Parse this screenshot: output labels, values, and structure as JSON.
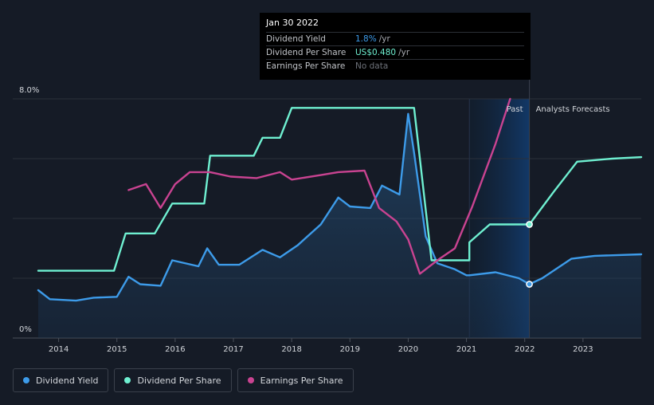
{
  "tooltip": {
    "date": "Jan 30 2022",
    "rows": [
      {
        "label": "Dividend Yield",
        "value": "1.8%",
        "unit": "/yr",
        "color": "#3d9be9"
      },
      {
        "label": "Dividend Per Share",
        "value": "US$0.480",
        "unit": "/yr",
        "color": "#6ff0d1"
      },
      {
        "label": "Earnings Per Share",
        "value": "No data",
        "unit": "",
        "color": "#6e727a"
      }
    ]
  },
  "period_labels": {
    "past": "Past",
    "forecast": "Analysts Forecasts"
  },
  "legend": [
    {
      "label": "Dividend Yield",
      "color": "#3d9be9"
    },
    {
      "label": "Dividend Per Share",
      "color": "#6ff0d1"
    },
    {
      "label": "Earnings Per Share",
      "color": "#c94391"
    }
  ],
  "chart_data": {
    "type": "line",
    "y_tick_labels": [
      "8.0%",
      "0%"
    ],
    "ylim": [
      0,
      8.0
    ],
    "xlim": [
      2013.65,
      2024.0
    ],
    "x_ticks": [
      2014,
      2015,
      2016,
      2017,
      2018,
      2019,
      2020,
      2021,
      2022,
      2023
    ],
    "x_tick_labels": [
      "2014",
      "2015",
      "2016",
      "2017",
      "2018",
      "2019",
      "2020",
      "2021",
      "2022",
      "2023"
    ],
    "past_boundary": 2022.08,
    "highlight_start": 2021.05,
    "grid": true,
    "series": [
      {
        "name": "Dividend Yield",
        "color": "#3d9be9",
        "fill": true,
        "points": [
          [
            2013.65,
            1.6
          ],
          [
            2013.85,
            1.3
          ],
          [
            2014.3,
            1.25
          ],
          [
            2014.6,
            1.35
          ],
          [
            2015.0,
            1.38
          ],
          [
            2015.2,
            2.05
          ],
          [
            2015.4,
            1.8
          ],
          [
            2015.75,
            1.75
          ],
          [
            2015.95,
            2.6
          ],
          [
            2016.4,
            2.4
          ],
          [
            2016.55,
            3.0
          ],
          [
            2016.75,
            2.45
          ],
          [
            2017.1,
            2.45
          ],
          [
            2017.5,
            2.95
          ],
          [
            2017.8,
            2.7
          ],
          [
            2018.1,
            3.1
          ],
          [
            2018.5,
            3.8
          ],
          [
            2018.8,
            4.7
          ],
          [
            2019.0,
            4.4
          ],
          [
            2019.35,
            4.35
          ],
          [
            2019.55,
            5.1
          ],
          [
            2019.85,
            4.8
          ],
          [
            2020.0,
            7.5
          ],
          [
            2020.1,
            6.2
          ],
          [
            2020.3,
            3.4
          ],
          [
            2020.5,
            2.5
          ],
          [
            2020.8,
            2.3
          ],
          [
            2021.0,
            2.1
          ],
          [
            2021.05,
            2.1
          ],
          [
            2021.5,
            2.2
          ],
          [
            2021.9,
            2.0
          ],
          [
            2022.08,
            1.8
          ],
          [
            2022.3,
            2.0
          ],
          [
            2022.8,
            2.65
          ],
          [
            2023.2,
            2.75
          ],
          [
            2024.0,
            2.8
          ]
        ]
      },
      {
        "name": "Dividend Per Share",
        "color": "#6ff0d1",
        "fill": false,
        "points": [
          [
            2013.65,
            2.25
          ],
          [
            2014.95,
            2.25
          ],
          [
            2015.15,
            3.5
          ],
          [
            2015.65,
            3.5
          ],
          [
            2015.95,
            4.5
          ],
          [
            2016.5,
            4.5
          ],
          [
            2016.6,
            6.1
          ],
          [
            2017.35,
            6.1
          ],
          [
            2017.5,
            6.7
          ],
          [
            2017.8,
            6.7
          ],
          [
            2018.0,
            7.7
          ],
          [
            2020.1,
            7.7
          ],
          [
            2020.4,
            2.6
          ],
          [
            2020.5,
            2.6
          ],
          [
            2021.05,
            2.6
          ],
          [
            2021.05,
            3.2
          ],
          [
            2021.4,
            3.8
          ],
          [
            2022.08,
            3.8
          ],
          [
            2022.5,
            4.9
          ],
          [
            2022.9,
            5.9
          ],
          [
            2023.5,
            6.0
          ],
          [
            2024.0,
            6.05
          ]
        ]
      },
      {
        "name": "Earnings Per Share",
        "color": "#c94391",
        "fill": false,
        "points": [
          [
            2015.2,
            4.95
          ],
          [
            2015.5,
            5.15
          ],
          [
            2015.75,
            4.35
          ],
          [
            2016.0,
            5.15
          ],
          [
            2016.25,
            5.55
          ],
          [
            2016.6,
            5.55
          ],
          [
            2016.95,
            5.4
          ],
          [
            2017.4,
            5.35
          ],
          [
            2017.8,
            5.55
          ],
          [
            2018.0,
            5.3
          ],
          [
            2018.5,
            5.45
          ],
          [
            2018.8,
            5.55
          ],
          [
            2019.25,
            5.6
          ],
          [
            2019.5,
            4.35
          ],
          [
            2019.8,
            3.9
          ],
          [
            2020.0,
            3.3
          ],
          [
            2020.2,
            2.15
          ],
          [
            2020.5,
            2.6
          ],
          [
            2020.8,
            3.0
          ],
          [
            2021.1,
            4.4
          ],
          [
            2021.5,
            6.5
          ],
          [
            2021.75,
            8.0
          ]
        ]
      }
    ],
    "markers": [
      {
        "series": "Dividend Per Share",
        "x": 2022.08,
        "y": 3.8
      },
      {
        "series": "Dividend Yield",
        "x": 2022.08,
        "y": 1.8
      }
    ]
  }
}
